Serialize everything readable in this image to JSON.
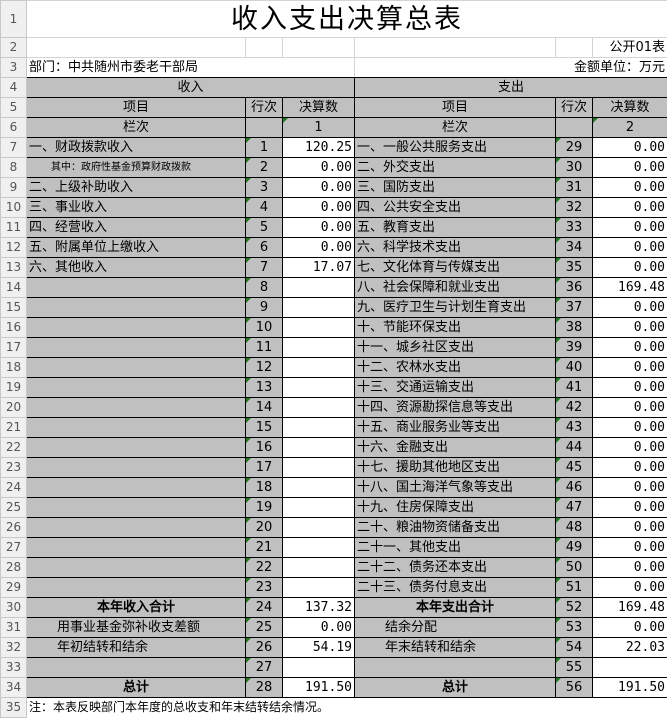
{
  "title": "收入支出决算总表",
  "form_code": "公开01表",
  "department": "部门：中共随州市委老干部局",
  "unit": "金额单位：万元",
  "headers": {
    "income": "收入",
    "expense": "支出",
    "item": "项目",
    "line": "行次",
    "amount": "决算数",
    "column_label": "栏次",
    "income_col_no": "1",
    "expense_col_no": "2"
  },
  "rows": [
    [
      "一、财政拨款收入",
      "1",
      "120.25",
      "一、一般公共服务支出",
      "29",
      "0.00"
    ],
    [
      "其中：政府性基金预算财政拨款",
      "2",
      "0.00",
      "二、外交支出",
      "30",
      "0.00"
    ],
    [
      "二、上级补助收入",
      "3",
      "0.00",
      "三、国防支出",
      "31",
      "0.00"
    ],
    [
      "三、事业收入",
      "4",
      "0.00",
      "四、公共安全支出",
      "32",
      "0.00"
    ],
    [
      "四、经营收入",
      "5",
      "0.00",
      "五、教育支出",
      "33",
      "0.00"
    ],
    [
      "五、附属单位上缴收入",
      "6",
      "0.00",
      "六、科学技术支出",
      "34",
      "0.00"
    ],
    [
      "六、其他收入",
      "7",
      "17.07",
      "七、文化体育与传媒支出",
      "35",
      "0.00"
    ],
    [
      "",
      "8",
      "",
      "八、社会保障和就业支出",
      "36",
      "169.48"
    ],
    [
      "",
      "9",
      "",
      "九、医疗卫生与计划生育支出",
      "37",
      "0.00"
    ],
    [
      "",
      "10",
      "",
      "十、节能环保支出",
      "38",
      "0.00"
    ],
    [
      "",
      "11",
      "",
      "十一、城乡社区支出",
      "39",
      "0.00"
    ],
    [
      "",
      "12",
      "",
      "十二、农林水支出",
      "40",
      "0.00"
    ],
    [
      "",
      "13",
      "",
      "十三、交通运输支出",
      "41",
      "0.00"
    ],
    [
      "",
      "14",
      "",
      "十四、资源勘探信息等支出",
      "42",
      "0.00"
    ],
    [
      "",
      "15",
      "",
      "十五、商业服务业等支出",
      "43",
      "0.00"
    ],
    [
      "",
      "16",
      "",
      "十六、金融支出",
      "44",
      "0.00"
    ],
    [
      "",
      "17",
      "",
      "十七、援助其他地区支出",
      "45",
      "0.00"
    ],
    [
      "",
      "18",
      "",
      "十八、国土海洋气象等支出",
      "46",
      "0.00"
    ],
    [
      "",
      "19",
      "",
      "十九、住房保障支出",
      "47",
      "0.00"
    ],
    [
      "",
      "20",
      "",
      "二十、粮油物资储备支出",
      "48",
      "0.00"
    ],
    [
      "",
      "21",
      "",
      "二十一、其他支出",
      "49",
      "0.00"
    ],
    [
      "",
      "22",
      "",
      "二十二、债务还本支出",
      "50",
      "0.00"
    ],
    [
      "",
      "23",
      "",
      "二十三、债务付息支出",
      "51",
      "0.00"
    ],
    [
      "本年收入合计",
      "24",
      "137.32",
      "本年支出合计",
      "52",
      "169.48"
    ],
    [
      "用事业基金弥补收支差额",
      "25",
      "0.00",
      "结余分配",
      "53",
      "0.00"
    ],
    [
      "年初结转和结余",
      "26",
      "54.19",
      "年末结转和结余",
      "54",
      "22.03"
    ],
    [
      "",
      "27",
      "",
      "",
      "55",
      ""
    ],
    [
      "总计",
      "28",
      "191.50",
      "总计",
      "56",
      "191.50"
    ]
  ],
  "note": "注：本表反映部门本年度的总收支和年末结转结余情况。",
  "colors": {
    "header_fill": "#c0c0c0",
    "border": "#000000",
    "marker": "#1e7a1e"
  }
}
